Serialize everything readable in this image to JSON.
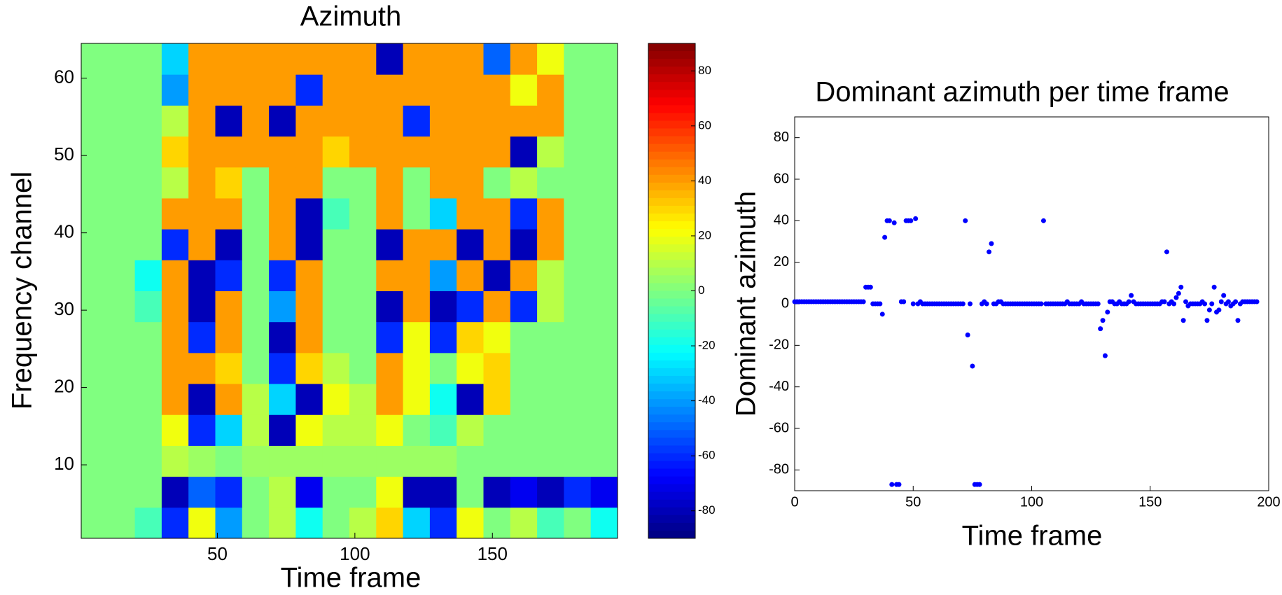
{
  "chart_data": [
    {
      "type": "heatmap",
      "title": "Azimuth",
      "x_label": "Time frame",
      "y_label": "Frequency channel",
      "x": [
        5.375,
        15.125,
        24.875,
        34.625,
        44.375,
        54.125,
        63.875,
        73.625,
        83.375,
        93.125,
        102.875,
        112.625,
        122.375,
        132.125,
        141.875,
        151.625,
        161.375,
        171.125,
        180.875,
        190.625
      ],
      "y": [
        2.5,
        6.5,
        10.5,
        14.5,
        18.5,
        22.5,
        26.5,
        30.5,
        34.5,
        38.5,
        42.5,
        46.5,
        50.5,
        54.5,
        58.5,
        62.5
      ],
      "z": [
        [
          0,
          0,
          -10,
          -60,
          20,
          -40,
          0,
          10,
          -20,
          0,
          10,
          30,
          -30,
          -60,
          20,
          0,
          10,
          -10,
          0,
          -20
        ],
        [
          0,
          0,
          0,
          -80,
          -50,
          -60,
          0,
          10,
          -70,
          0,
          0,
          20,
          -80,
          -80,
          0,
          -80,
          -70,
          -80,
          -60,
          -70
        ],
        [
          0,
          0,
          0,
          10,
          5,
          0,
          5,
          5,
          5,
          5,
          5,
          5,
          5,
          5,
          0,
          0,
          0,
          0,
          0,
          0
        ],
        [
          0,
          0,
          0,
          20,
          -60,
          -30,
          10,
          -80,
          20,
          10,
          10,
          20,
          0,
          -10,
          10,
          0,
          0,
          0,
          0,
          0
        ],
        [
          0,
          0,
          0,
          40,
          -80,
          40,
          10,
          -30,
          -80,
          20,
          10,
          40,
          20,
          -20,
          -80,
          30,
          0,
          0,
          0,
          0
        ],
        [
          0,
          0,
          0,
          40,
          40,
          30,
          0,
          -60,
          30,
          10,
          0,
          40,
          20,
          0,
          20,
          30,
          0,
          0,
          0,
          0
        ],
        [
          0,
          0,
          0,
          40,
          -60,
          40,
          0,
          -80,
          40,
          0,
          0,
          -60,
          20,
          -60,
          30,
          20,
          0,
          0,
          0,
          0
        ],
        [
          0,
          0,
          -10,
          40,
          -80,
          40,
          0,
          -40,
          40,
          0,
          0,
          -80,
          40,
          -80,
          -60,
          40,
          -60,
          10,
          0,
          0
        ],
        [
          0,
          0,
          -20,
          40,
          -80,
          -60,
          0,
          -60,
          40,
          0,
          0,
          40,
          40,
          -40,
          40,
          -80,
          40,
          10,
          0,
          0
        ],
        [
          0,
          0,
          0,
          -60,
          40,
          -80,
          0,
          40,
          -80,
          0,
          0,
          -80,
          40,
          40,
          -80,
          40,
          -80,
          40,
          0,
          0
        ],
        [
          0,
          0,
          0,
          40,
          40,
          40,
          0,
          40,
          -80,
          -10,
          0,
          40,
          0,
          -30,
          40,
          40,
          -60,
          40,
          0,
          0
        ],
        [
          0,
          0,
          0,
          10,
          40,
          30,
          0,
          40,
          40,
          0,
          0,
          40,
          0,
          40,
          40,
          0,
          10,
          0,
          0,
          0
        ],
        [
          0,
          0,
          0,
          30,
          40,
          40,
          40,
          40,
          40,
          30,
          40,
          40,
          40,
          40,
          40,
          40,
          -80,
          10,
          0,
          0
        ],
        [
          0,
          0,
          0,
          10,
          40,
          -80,
          40,
          -80,
          40,
          40,
          40,
          40,
          -60,
          40,
          40,
          40,
          40,
          40,
          0,
          0
        ],
        [
          0,
          0,
          0,
          -40,
          40,
          40,
          40,
          40,
          -60,
          40,
          40,
          40,
          40,
          40,
          40,
          40,
          20,
          40,
          0,
          0
        ],
        [
          0,
          0,
          0,
          -30,
          40,
          40,
          40,
          40,
          40,
          40,
          40,
          -80,
          40,
          40,
          40,
          -50,
          40,
          20,
          0,
          0
        ]
      ],
      "xlim": [
        0.5,
        195.5
      ],
      "ylim": [
        0.5,
        64.5
      ],
      "xticks": [
        50,
        100,
        150
      ],
      "yticks": [
        10,
        20,
        30,
        40,
        50,
        60
      ],
      "zlim": [
        -90,
        90
      ],
      "zticks": [
        -80,
        -60,
        -40,
        -20,
        0,
        20,
        40,
        60,
        80
      ],
      "colormap": "jet"
    },
    {
      "type": "scatter",
      "title": "Dominant azimuth per time frame",
      "x_label": "Time frame",
      "y_label": "Dominant azimuth",
      "color": "#0000ff",
      "x": [
        0,
        1,
        2,
        3,
        4,
        5,
        6,
        7,
        8,
        9,
        10,
        11,
        12,
        13,
        14,
        15,
        16,
        17,
        18,
        19,
        20,
        21,
        22,
        23,
        24,
        25,
        26,
        27,
        28,
        29,
        30,
        31,
        32,
        33,
        34,
        35,
        36,
        37,
        38,
        39,
        40,
        41,
        42,
        43,
        44,
        45,
        46,
        47,
        48,
        49,
        50,
        51,
        52,
        53,
        54,
        55,
        56,
        57,
        58,
        59,
        60,
        61,
        62,
        63,
        64,
        65,
        66,
        67,
        68,
        69,
        70,
        71,
        72,
        73,
        74,
        75,
        76,
        77,
        78,
        79,
        80,
        81,
        82,
        83,
        84,
        85,
        86,
        87,
        88,
        89,
        90,
        91,
        92,
        93,
        94,
        95,
        96,
        97,
        98,
        99,
        100,
        101,
        102,
        103,
        104,
        105,
        106,
        107,
        108,
        109,
        110,
        111,
        112,
        113,
        114,
        115,
        116,
        117,
        118,
        119,
        120,
        121,
        122,
        123,
        124,
        125,
        126,
        127,
        128,
        129,
        130,
        131,
        132,
        133,
        134,
        135,
        136,
        137,
        138,
        139,
        140,
        141,
        142,
        143,
        144,
        145,
        146,
        147,
        148,
        149,
        150,
        151,
        152,
        153,
        154,
        155,
        156,
        157,
        158,
        159,
        160,
        161,
        162,
        163,
        164,
        165,
        166,
        167,
        168,
        169,
        170,
        171,
        172,
        173,
        174,
        175,
        176,
        177,
        178,
        179,
        180,
        181,
        182,
        183,
        184,
        185,
        186,
        187,
        188,
        189,
        190,
        191,
        192,
        193,
        194,
        195
      ],
      "values": [
        1,
        1,
        1,
        1,
        1,
        1,
        1,
        1,
        1,
        1,
        1,
        1,
        1,
        1,
        1,
        1,
        1,
        1,
        1,
        1,
        1,
        1,
        1,
        1,
        1,
        1,
        1,
        1,
        1,
        1,
        8,
        8,
        8,
        0,
        0,
        0,
        0,
        -5,
        32,
        40,
        40,
        -87,
        39,
        -87,
        -87,
        1,
        1,
        40,
        40,
        40,
        0,
        41,
        0,
        1,
        0,
        0,
        0,
        0,
        0,
        0,
        0,
        0,
        0,
        0,
        0,
        0,
        0,
        0,
        0,
        0,
        0,
        0,
        40,
        -15,
        0,
        -30,
        -87,
        -87,
        -87,
        0,
        1,
        0,
        25,
        29,
        0,
        0,
        1,
        1,
        0,
        0,
        0,
        0,
        0,
        0,
        0,
        0,
        0,
        0,
        0,
        0,
        0,
        0,
        0,
        0,
        0,
        40,
        0,
        0,
        0,
        0,
        0,
        0,
        0,
        0,
        0,
        1,
        0,
        0,
        0,
        0,
        0,
        1,
        0,
        0,
        0,
        0,
        0,
        0,
        0,
        -12,
        -8,
        -25,
        -4,
        1,
        1,
        0,
        0,
        1,
        0,
        0,
        0,
        1,
        4,
        1,
        0,
        0,
        0,
        0,
        0,
        0,
        0,
        0,
        0,
        0,
        0,
        1,
        1,
        25,
        0,
        1,
        0,
        3,
        5,
        8,
        -8,
        1,
        -1,
        0,
        0,
        0,
        0,
        0,
        1,
        0,
        -8,
        -3,
        0,
        8,
        -4,
        -3,
        1,
        4,
        0,
        1,
        -1,
        0,
        1,
        -8,
        0,
        1,
        1,
        1,
        1,
        1,
        1,
        1
      ],
      "xlim": [
        0,
        200
      ],
      "ylim": [
        -90,
        90
      ],
      "xticks": [
        0,
        50,
        100,
        150,
        200
      ],
      "yticks": [
        -80,
        -60,
        -40,
        -20,
        0,
        20,
        40,
        60,
        80
      ]
    }
  ]
}
